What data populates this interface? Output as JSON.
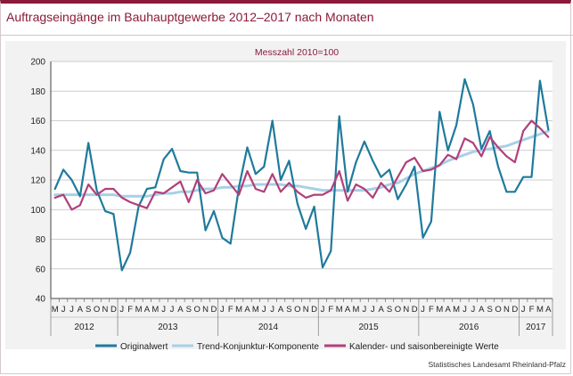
{
  "title": "Auftragseingänge im Bauhauptgewerbe 2012–2017 nach Monaten",
  "source": "Statistisches Landesamt Rheinland-Pfalz",
  "colors": {
    "frame_accent": "#8b1a3a",
    "original": "#1f7a9c",
    "trend": "#a8d0e6",
    "adjusted": "#b0407a"
  },
  "chart_data": {
    "type": "line",
    "subtitle": "Messzahl 2010=100",
    "y_ticks": [
      40,
      60,
      80,
      100,
      120,
      140,
      160,
      180,
      200
    ],
    "ylim": [
      40,
      200
    ],
    "grid": "horizontal",
    "legend_position": "bottom",
    "month_labels": [
      "M",
      "J",
      "J",
      "A",
      "S",
      "O",
      "N",
      "D",
      "J",
      "F",
      "M",
      "A",
      "M",
      "J",
      "J",
      "A",
      "S",
      "O",
      "N",
      "D",
      "J",
      "F",
      "M",
      "A",
      "M",
      "J",
      "J",
      "A",
      "S",
      "O",
      "N",
      "D",
      "J",
      "F",
      "M",
      "A",
      "M",
      "J",
      "J",
      "A",
      "S",
      "O",
      "N",
      "D",
      "J",
      "F",
      "M",
      "A",
      "M",
      "J",
      "J",
      "A",
      "S",
      "O",
      "N",
      "D",
      "J",
      "F",
      "M",
      "A"
    ],
    "years": [
      {
        "label": "2012",
        "start": 0,
        "end": 7
      },
      {
        "label": "2013",
        "start": 8,
        "end": 19
      },
      {
        "label": "2014",
        "start": 20,
        "end": 31
      },
      {
        "label": "2015",
        "start": 32,
        "end": 43
      },
      {
        "label": "2016",
        "start": 44,
        "end": 55
      },
      {
        "label": "2017",
        "start": 56,
        "end": 59
      }
    ],
    "series": [
      {
        "name": "Originalwert",
        "color": "#1f7a9c",
        "values": [
          114,
          127,
          120,
          109,
          145,
          113,
          99,
          97,
          59,
          71,
          102,
          114,
          115,
          134,
          141,
          126,
          125,
          125,
          86,
          99,
          81,
          77,
          115,
          142,
          124,
          129,
          160,
          120,
          133,
          104,
          87,
          102,
          61,
          72,
          163,
          112,
          132,
          146,
          133,
          122,
          127,
          107,
          117,
          129,
          81,
          92,
          166,
          140,
          157,
          188,
          171,
          141,
          153,
          129,
          112,
          112,
          122,
          122,
          187,
          154
        ]
      },
      {
        "name": "Trend-Konjunktur-Komponente",
        "color": "#a8d0e6",
        "values": [
          110,
          110,
          110,
          110,
          110,
          110,
          110,
          110,
          109,
          109,
          109,
          109,
          110,
          111,
          111,
          112,
          112,
          113,
          114,
          114,
          115,
          115,
          116,
          116,
          117,
          117,
          117,
          117,
          116,
          116,
          115,
          114,
          113,
          113,
          113,
          113,
          113,
          113,
          114,
          115,
          117,
          118,
          121,
          124,
          126,
          128,
          130,
          133,
          135,
          137,
          139,
          140,
          141,
          142,
          143,
          145,
          147,
          149,
          151,
          153
        ]
      },
      {
        "name": "Kalender- und saisonbereinigte Werte",
        "color": "#b0407a",
        "values": [
          108,
          110,
          100,
          103,
          117,
          110,
          114,
          114,
          108,
          105,
          103,
          101,
          112,
          111,
          115,
          119,
          105,
          120,
          111,
          113,
          124,
          117,
          110,
          126,
          114,
          112,
          124,
          112,
          118,
          112,
          108,
          110,
          110,
          113,
          126,
          106,
          117,
          114,
          108,
          118,
          112,
          122,
          132,
          135,
          126,
          127,
          130,
          137,
          134,
          148,
          145,
          136,
          149,
          142,
          136,
          132,
          153,
          160,
          155,
          149
        ]
      }
    ]
  }
}
